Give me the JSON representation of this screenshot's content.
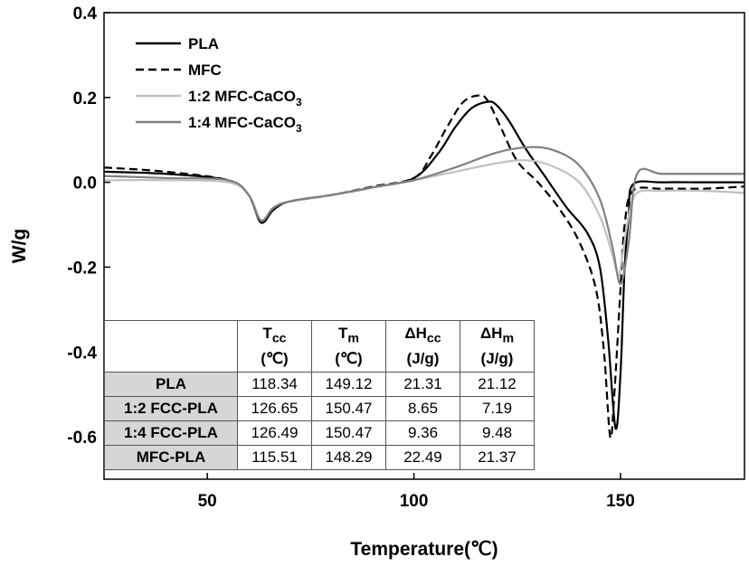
{
  "chart_data": {
    "type": "line",
    "xlabel": "Temperature(℃)",
    "ylabel": "W/g",
    "xlim": [
      25,
      180
    ],
    "ylim": [
      -0.7,
      0.4
    ],
    "xticks": [
      "50",
      "100",
      "150"
    ],
    "xtick_values": [
      50,
      100,
      150
    ],
    "yticks": [
      "0.4",
      "0.2",
      "0.0",
      "-0.2",
      "-0.4",
      "-0.6"
    ],
    "ytick_values": [
      0.4,
      0.2,
      0.0,
      -0.2,
      -0.4,
      -0.6
    ],
    "legend_position": "top-left",
    "series": [
      {
        "name": "PLA",
        "name_sub": "",
        "color": "#000000",
        "dash": "solid",
        "x": [
          25,
          40,
          55,
          60,
          63,
          66,
          70,
          80,
          90,
          100,
          106,
          110,
          114,
          118,
          120,
          123,
          127,
          132,
          137,
          142,
          145,
          147,
          148.8,
          150,
          151,
          152,
          153,
          160,
          170,
          180
        ],
        "y": [
          0.025,
          0.02,
          0.005,
          -0.03,
          -0.095,
          -0.065,
          -0.045,
          -0.03,
          -0.012,
          0.01,
          0.07,
          0.13,
          0.175,
          0.19,
          0.182,
          0.145,
          0.08,
          0.01,
          -0.06,
          -0.12,
          -0.2,
          -0.37,
          -0.58,
          -0.45,
          -0.2,
          -0.08,
          -0.005,
          0.0,
          0.0,
          0.0
        ]
      },
      {
        "name": "MFC",
        "name_sub": "",
        "color": "#000000",
        "dash": "dashed",
        "x": [
          25,
          40,
          55,
          60,
          63,
          66,
          70,
          80,
          90,
          100,
          104,
          108,
          112,
          116,
          118,
          121,
          125,
          130,
          135,
          140,
          144,
          146,
          147.5,
          148.5,
          150,
          151,
          153,
          160,
          170,
          180
        ],
        "y": [
          0.035,
          0.025,
          0.005,
          -0.03,
          -0.09,
          -0.06,
          -0.045,
          -0.03,
          -0.01,
          0.01,
          0.06,
          0.13,
          0.19,
          0.205,
          0.19,
          0.13,
          0.05,
          0.0,
          -0.06,
          -0.14,
          -0.25,
          -0.4,
          -0.6,
          -0.5,
          -0.25,
          -0.1,
          -0.02,
          -0.015,
          -0.015,
          -0.01
        ]
      },
      {
        "name": "1:2 MFC-CaCO",
        "name_sub": "3",
        "color": "#c0c0c0",
        "dash": "solid",
        "x": [
          25,
          40,
          55,
          60,
          63,
          66,
          70,
          80,
          90,
          100,
          110,
          120,
          127,
          133,
          140,
          145,
          148,
          149.5,
          150.5,
          152,
          154,
          160,
          170,
          180
        ],
        "y": [
          0.005,
          0.005,
          0.0,
          -0.03,
          -0.09,
          -0.06,
          -0.045,
          -0.03,
          -0.012,
          0.005,
          0.025,
          0.045,
          0.052,
          0.04,
          0.0,
          -0.08,
          -0.17,
          -0.22,
          -0.17,
          -0.08,
          -0.025,
          -0.02,
          -0.02,
          -0.025
        ]
      },
      {
        "name": "1:4 MFC-CaCO",
        "name_sub": "3",
        "color": "#808080",
        "dash": "solid",
        "x": [
          25,
          40,
          55,
          60,
          63,
          66,
          70,
          80,
          90,
          100,
          110,
          120,
          128,
          134,
          140,
          145,
          148,
          150,
          152,
          154,
          160,
          170,
          180
        ],
        "y": [
          0.015,
          0.01,
          0.005,
          -0.03,
          -0.09,
          -0.06,
          -0.045,
          -0.03,
          -0.012,
          0.005,
          0.035,
          0.07,
          0.083,
          0.075,
          0.04,
          -0.04,
          -0.15,
          -0.24,
          -0.14,
          0.02,
          0.02,
          0.02,
          0.02
        ]
      }
    ]
  },
  "table": {
    "headers": [
      {
        "main": "T",
        "sub": "cc",
        "unit": "(℃)"
      },
      {
        "main": "T",
        "sub": "m",
        "unit": "(℃)"
      },
      {
        "main": "ΔH",
        "sub": "cc",
        "unit": "(J/g)"
      },
      {
        "main": "ΔH",
        "sub": "m",
        "unit": "(J/g)"
      }
    ],
    "rows": [
      {
        "label": "PLA",
        "values": [
          "118.34",
          "149.12",
          "21.31",
          "21.12"
        ]
      },
      {
        "label": "1:2 FCC-PLA",
        "values": [
          "126.65",
          "150.47",
          "8.65",
          "7.19"
        ]
      },
      {
        "label": "1:4 FCC-PLA",
        "values": [
          "126.49",
          "150.47",
          "9.36",
          "9.48"
        ]
      },
      {
        "label": "MFC-PLA",
        "values": [
          "115.51",
          "148.29",
          "22.49",
          "21.37"
        ]
      }
    ]
  }
}
